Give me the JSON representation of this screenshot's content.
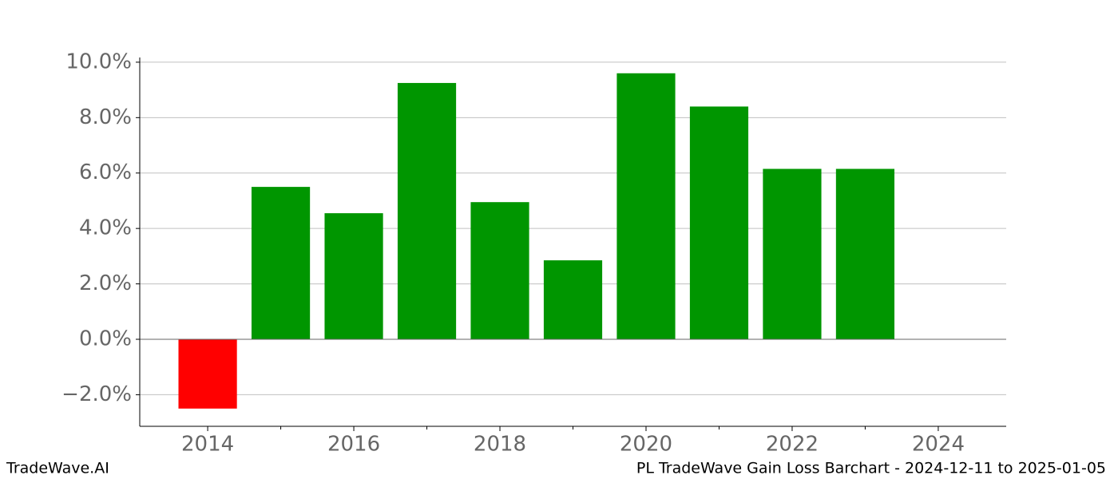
{
  "chart_data": {
    "type": "bar",
    "x": [
      2014,
      2015,
      2016,
      2017,
      2018,
      2019,
      2020,
      2021,
      2022,
      2023
    ],
    "values": [
      -2.5,
      5.5,
      4.55,
      9.25,
      4.95,
      2.85,
      9.6,
      8.4,
      6.15,
      6.15
    ],
    "positive_color": "#009600",
    "negative_color": "#ff0000",
    "xlim": [
      2013.07,
      2024.93
    ],
    "xticks": [
      2014,
      2016,
      2018,
      2020,
      2022,
      2024
    ],
    "xminor_ticks": [
      2015,
      2017,
      2019,
      2021,
      2023
    ],
    "ylim": [
      -3.14,
      10.17
    ],
    "yticks": [
      {
        "value": -2,
        "label": "−2.0%"
      },
      {
        "value": 0,
        "label": "0.0%"
      },
      {
        "value": 2,
        "label": "2.0%"
      },
      {
        "value": 4,
        "label": "4.0%"
      },
      {
        "value": 6,
        "label": "6.0%"
      },
      {
        "value": 8,
        "label": "8.0%"
      },
      {
        "value": 10,
        "label": "10.0%"
      }
    ],
    "grid": true,
    "footer_left": "TradeWave.AI",
    "footer_right": "PL TradeWave Gain Loss Barchart - 2024-12-11 to 2025-01-05"
  }
}
